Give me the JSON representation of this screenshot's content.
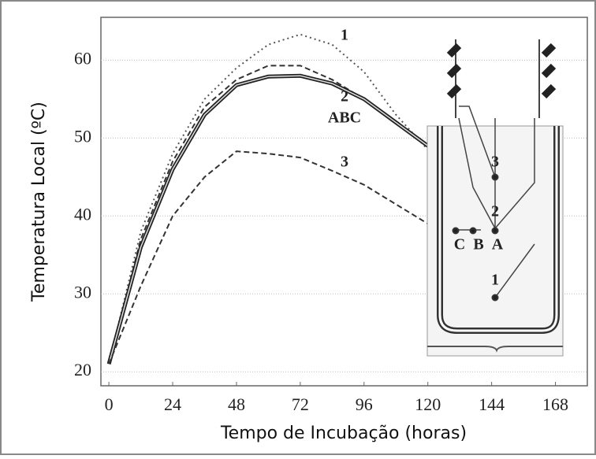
{
  "chart_data": {
    "type": "line",
    "x_label": "Tempo de Incubação (horas)",
    "y_label": "Temperatura Local (ºC)",
    "x": [
      0,
      12,
      24,
      36,
      48,
      60,
      72,
      84,
      96,
      108,
      120
    ],
    "series": [
      {
        "name": "1",
        "color": "#555555",
        "dash": "dotted",
        "values": [
          21,
          38,
          48,
          55,
          59,
          62,
          63.3,
          62,
          58.5,
          53,
          48.5
        ]
      },
      {
        "name": "2",
        "color": "#333333",
        "dash": "dashed",
        "values": [
          21,
          37,
          47,
          54,
          57.5,
          59.3,
          59.3,
          57.5,
          55,
          52,
          49
        ]
      },
      {
        "name": "ABC",
        "color": "#222222",
        "dash": "solid",
        "values": [
          21,
          36,
          46,
          53,
          56.8,
          57.9,
          58,
          57,
          55,
          52,
          49
        ]
      },
      {
        "name": "3",
        "color": "#333333",
        "dash": "dashed",
        "values": [
          21,
          31,
          40,
          45,
          48.3,
          48,
          47.5,
          45.8,
          44,
          41.5,
          39
        ]
      }
    ],
    "inset_labels": [
      "3",
      "2",
      "1",
      "C",
      "B",
      "A"
    ],
    "xlim": [
      -3,
      180
    ],
    "xticks": [
      0,
      24,
      48,
      72,
      96,
      120,
      144,
      168
    ],
    "ylim": [
      18.2,
      65.5
    ],
    "yticks": [
      20,
      30,
      40,
      50,
      60
    ],
    "grid": true
  }
}
